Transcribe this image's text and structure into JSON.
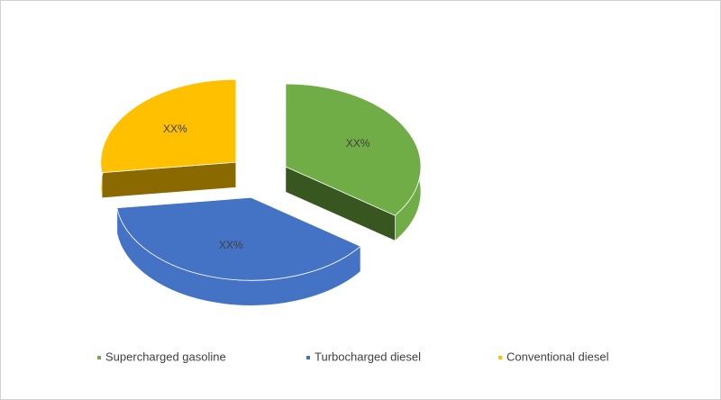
{
  "chart_data": {
    "type": "pie",
    "categories": [
      "Supercharged gasoline",
      "Turbocharged diesel",
      "Conventional diesel"
    ],
    "values": [
      35,
      38,
      27
    ],
    "value_labels": [
      "XX%",
      "XX%",
      "XX%"
    ],
    "colors": [
      "#70ad47",
      "#4472c4",
      "#ffc000"
    ],
    "side_colors": [
      "#38561f",
      "#3a62ad",
      "#8a6a00"
    ],
    "legend": "bottom"
  }
}
